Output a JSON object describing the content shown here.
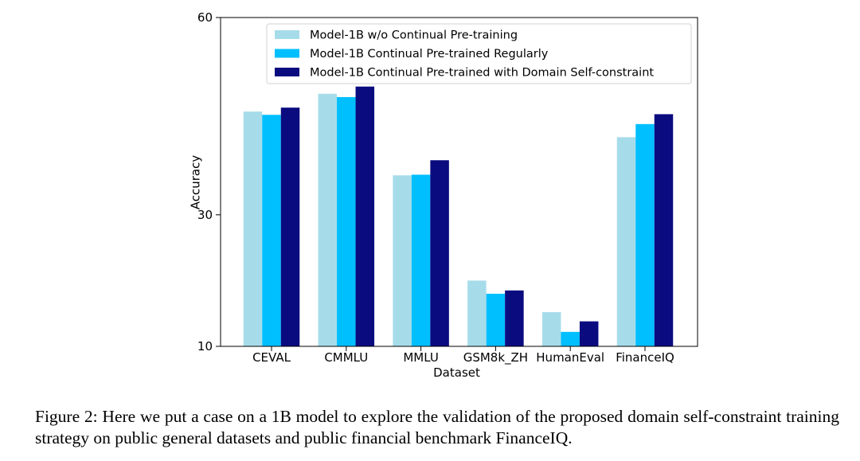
{
  "chart_data": {
    "type": "bar",
    "categories": [
      "CEVAL",
      "CMMLU",
      "MMLU",
      "GSM8k_ZH",
      "HumanEval",
      "FinanceIQ"
    ],
    "series": [
      {
        "name": "Model-1B w/o Continual Pre-training",
        "color": "#a6dcea",
        "values": [
          45.7,
          48.4,
          36.0,
          20.0,
          15.2,
          41.8
        ]
      },
      {
        "name": "Model-1B Continual Pre-trained Regularly",
        "color": "#00bfff",
        "values": [
          45.2,
          47.9,
          36.1,
          18.0,
          12.2,
          43.8
        ]
      },
      {
        "name": "Model-1B Continual Pre-trained with Domain Self-constraint",
        "color": "#0b0b80",
        "values": [
          46.3,
          49.5,
          38.3,
          18.5,
          13.8,
          45.3
        ]
      }
    ],
    "xlabel": "Dataset",
    "ylabel": "Accuracy",
    "ylim": [
      10,
      60
    ],
    "yticks": [
      10,
      30,
      60
    ],
    "grid": false,
    "legend_position": "top"
  },
  "caption": "Figure 2: Here we put a case on a 1B model to explore the validation of the proposed domain self-constraint training strategy on public general datasets and public financial benchmark FinanceIQ."
}
